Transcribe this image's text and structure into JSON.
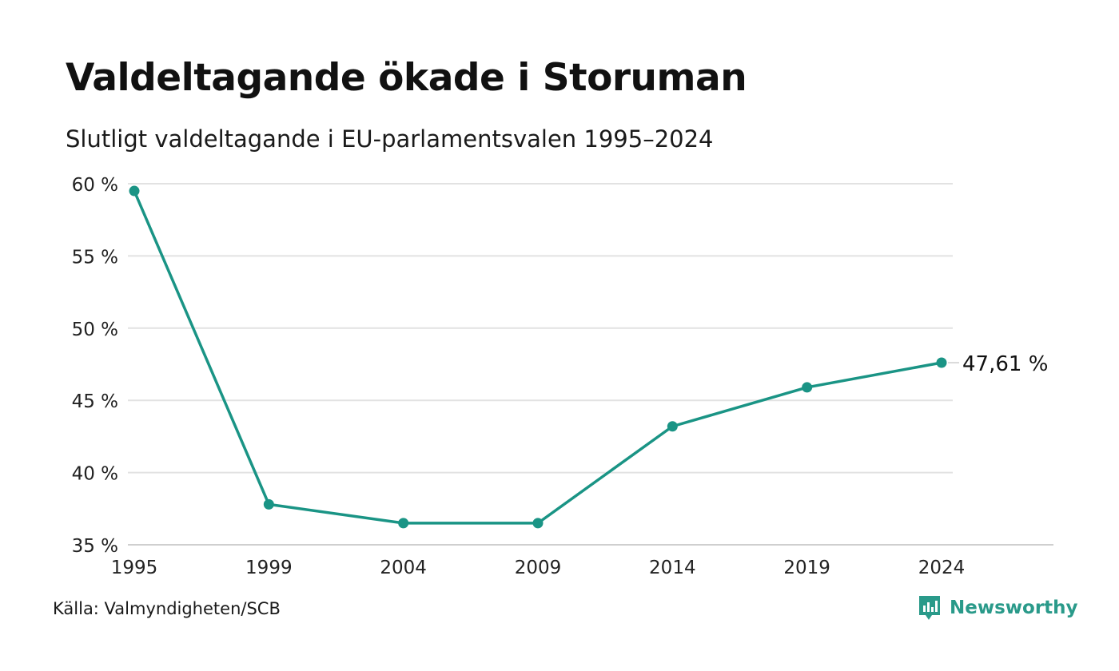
{
  "chart_data": {
    "type": "line",
    "title": "Valdeltagande ökade i Storuman",
    "subtitle": "Slutligt valdeltagande i EU-parlamentsvalen 1995–2024",
    "xlabel": "",
    "ylabel": "",
    "categories": [
      "1995",
      "1999",
      "2004",
      "2009",
      "2014",
      "2019",
      "2024"
    ],
    "series": [
      {
        "values": [
          59.5,
          37.8,
          36.5,
          36.5,
          43.2,
          45.9,
          47.61
        ]
      }
    ],
    "ylim": [
      35,
      60
    ],
    "yticks": [
      {
        "value": 60,
        "label": "60 %"
      },
      {
        "value": 55,
        "label": "55 %"
      },
      {
        "value": 50,
        "label": "50 %"
      },
      {
        "value": 45,
        "label": "45 %"
      },
      {
        "value": 40,
        "label": "40 %"
      },
      {
        "value": 35,
        "label": "35 %"
      }
    ],
    "end_label": "47,61 %",
    "grid": true,
    "legend": "none",
    "line_color": "#1a9485"
  },
  "source": "Källa: Valmyndigheten/SCB",
  "brand": {
    "name": "Newsworthy",
    "icon": "newsworthy-logo-icon",
    "color": "#2a9a8a"
  }
}
